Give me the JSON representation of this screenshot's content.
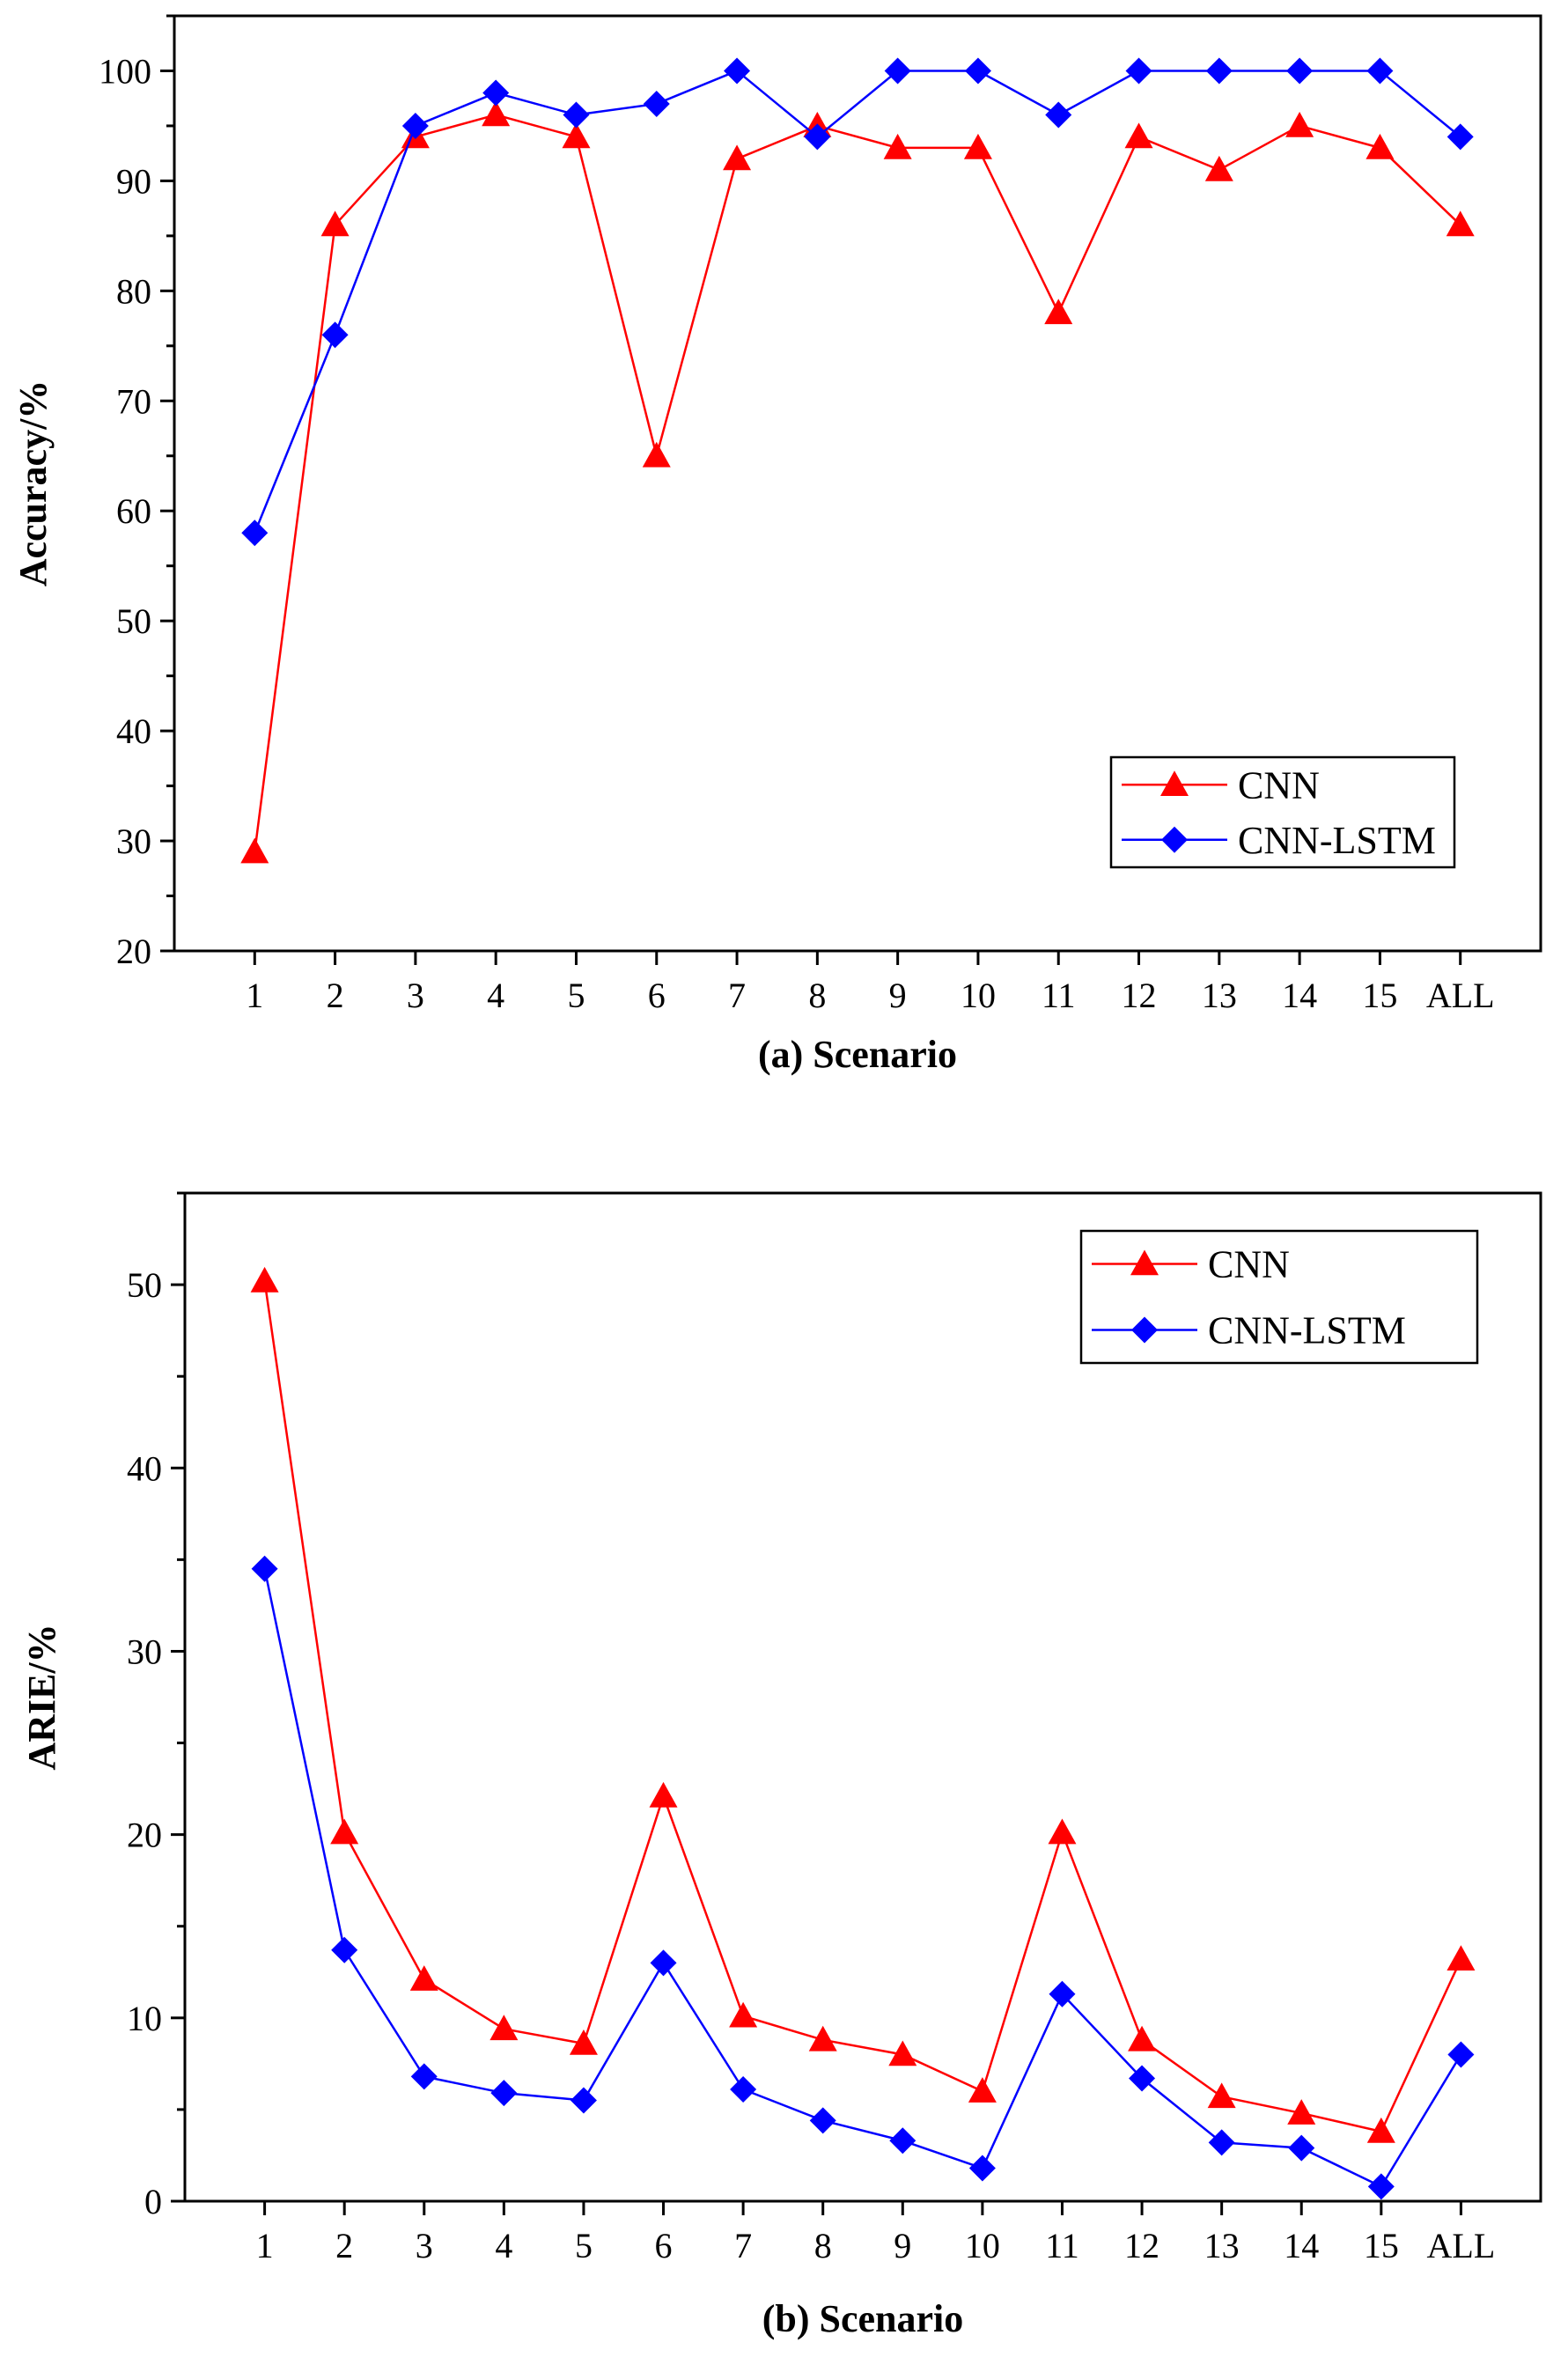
{
  "chart_data": [
    {
      "type": "line",
      "categories": [
        "1",
        "2",
        "3",
        "4",
        "5",
        "6",
        "7",
        "8",
        "9",
        "10",
        "11",
        "12",
        "13",
        "14",
        "15",
        "ALL"
      ],
      "series": [
        {
          "name": "CNN",
          "color": "#ff0000",
          "marker": "triangle",
          "values": [
            29,
            86,
            94,
            96,
            94,
            65,
            92,
            95,
            93,
            93,
            78,
            94,
            91,
            95,
            93,
            86
          ]
        },
        {
          "name": "CNN-LSTM",
          "color": "#0000ff",
          "marker": "diamond",
          "values": [
            58,
            76,
            95,
            98,
            96,
            97,
            100,
            94,
            100,
            100,
            96,
            100,
            100,
            100,
            100,
            94
          ]
        }
      ],
      "title": "",
      "xlabel": "(a) Scenario",
      "ylabel": "Accuracy/%",
      "ylim": [
        20,
        105
      ],
      "yticks": [
        "20",
        "30",
        "40",
        "50",
        "60",
        "70",
        "80",
        "90",
        "100"
      ],
      "legend_position": "bottom-right"
    },
    {
      "type": "line",
      "categories": [
        "1",
        "2",
        "3",
        "4",
        "5",
        "6",
        "7",
        "8",
        "9",
        "10",
        "11",
        "12",
        "13",
        "14",
        "15",
        "ALL"
      ],
      "series": [
        {
          "name": "CNN",
          "color": "#ff0000",
          "marker": "triangle",
          "values": [
            50.2,
            20.1,
            12.1,
            9.4,
            8.6,
            22.1,
            10.1,
            8.8,
            8.0,
            6.0,
            20.1,
            8.8,
            5.7,
            4.8,
            3.8,
            13.2
          ]
        },
        {
          "name": "CNN-LSTM",
          "color": "#0000ff",
          "marker": "diamond",
          "values": [
            34.5,
            13.7,
            6.8,
            5.9,
            5.5,
            13.0,
            6.1,
            4.4,
            3.3,
            1.8,
            11.3,
            6.7,
            3.2,
            2.9,
            0.8,
            8.0
          ]
        }
      ],
      "title": "",
      "xlabel": "(b) Scenario",
      "ylabel": "ARIE/%",
      "ylim": [
        0,
        55
      ],
      "yticks": [
        "0",
        "10",
        "20",
        "30",
        "40",
        "50"
      ],
      "legend_position": "top-right"
    }
  ]
}
